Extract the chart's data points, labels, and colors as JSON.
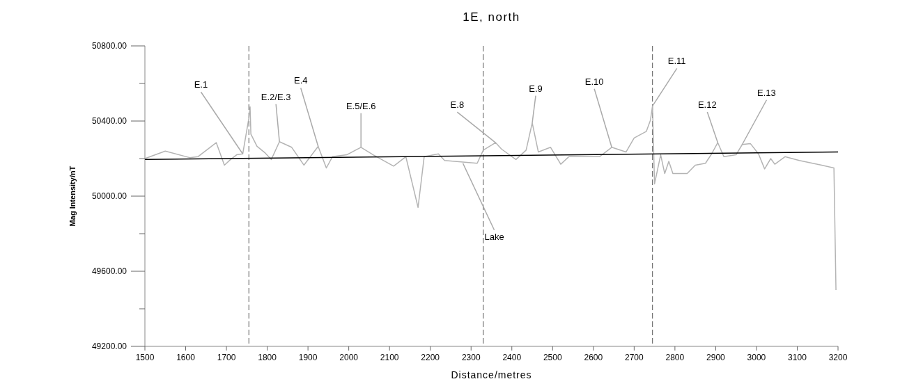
{
  "chart_data": {
    "type": "line",
    "title": "1E, north",
    "xlabel": "Distance/metres",
    "ylabel": "Mag Intensity/nT",
    "xlim": [
      1500,
      3200
    ],
    "xticks": [
      1500,
      1600,
      1700,
      1800,
      1900,
      2000,
      2100,
      2200,
      2300,
      2400,
      2500,
      2600,
      2700,
      2800,
      2900,
      3000,
      3100,
      3200
    ],
    "ylim": [
      49200,
      50800
    ],
    "yticks": [
      {
        "value": 49200,
        "label": "49200.00"
      },
      {
        "value": 49400,
        "label": null
      },
      {
        "value": 49600,
        "label": "49600.00"
      },
      {
        "value": 49800,
        "label": null
      },
      {
        "value": 50000,
        "label": "50000.00"
      },
      {
        "value": 50200,
        "label": null
      },
      {
        "value": 50400,
        "label": "50400.00"
      },
      {
        "value": 50600,
        "label": null
      },
      {
        "value": 50800,
        "label": "50800.00"
      }
    ],
    "grid": false,
    "marker": "none",
    "series": [
      {
        "color": "#b4b4b4",
        "x": [
          1500,
          1550,
          1610,
          1630,
          1675,
          1695,
          1710,
          1725,
          1740,
          1755,
          1758,
          1760,
          1775,
          1795,
          1810,
          1830,
          1860,
          1890,
          1925,
          1945,
          1960,
          1995,
          2030,
          2060,
          2110,
          2140,
          2170,
          2185,
          2220,
          2235,
          2315,
          2330,
          2360,
          2375,
          2410,
          2435,
          2450,
          2465,
          2495,
          2520,
          2540,
          2615,
          2645,
          2680,
          2700,
          2730,
          2740,
          2745,
          2750,
          2765,
          2775,
          2785,
          2795,
          2830,
          2850,
          2875,
          2890,
          2905,
          2920,
          2950,
          2965,
          2985,
          3005,
          3020,
          3035,
          3045,
          3070,
          3105,
          3160,
          3190,
          3195
        ],
        "values": [
          50200,
          50240,
          50205,
          50210,
          50285,
          50165,
          50195,
          50220,
          50225,
          50415,
          50475,
          50330,
          50265,
          50230,
          50195,
          50290,
          50260,
          50165,
          50265,
          50150,
          50210,
          50220,
          50260,
          50220,
          50160,
          50210,
          49940,
          50210,
          50225,
          50190,
          50175,
          50245,
          50285,
          50250,
          50195,
          50245,
          50390,
          50235,
          50260,
          50170,
          50210,
          50210,
          50260,
          50235,
          50310,
          50345,
          50405,
          50480,
          50065,
          50220,
          50120,
          50185,
          50120,
          50120,
          50165,
          50175,
          50225,
          50285,
          50210,
          50220,
          50275,
          50280,
          50225,
          50145,
          50200,
          50170,
          50210,
          50190,
          50165,
          50150,
          49500
        ]
      },
      {
        "color": "#000000",
        "x": [
          1500,
          3200
        ],
        "values": [
          50195,
          50235
        ]
      }
    ],
    "ref_lines": [
      {
        "axis": "x",
        "value": 1755,
        "line_style": "dashed",
        "color": "#555555"
      },
      {
        "axis": "x",
        "value": 2330,
        "line_style": "dashed",
        "color": "#555555"
      },
      {
        "axis": "x",
        "value": 2745,
        "line_style": "dashed",
        "color": "#555555"
      }
    ],
    "annotations": [
      {
        "text": "E.1",
        "x": 1740,
        "y": 50225
      },
      {
        "text": "E.2/E.3",
        "x": 1830,
        "y": 50290
      },
      {
        "text": "E.4",
        "x": 1925,
        "y": 50265
      },
      {
        "text": "E.5/E.6",
        "x": 2030,
        "y": 50260
      },
      {
        "text": "E.8",
        "x": 2360,
        "y": 50285
      },
      {
        "text": "E.9",
        "x": 2450,
        "y": 50390
      },
      {
        "text": "E.10",
        "x": 2645,
        "y": 50260
      },
      {
        "text": "E.11",
        "x": 2745,
        "y": 50480
      },
      {
        "text": "E.12",
        "x": 2905,
        "y": 50285
      },
      {
        "text": "E.13",
        "x": 2965,
        "y": 50275
      },
      {
        "text": "Lake",
        "x": 2280,
        "y": 50175
      }
    ]
  }
}
